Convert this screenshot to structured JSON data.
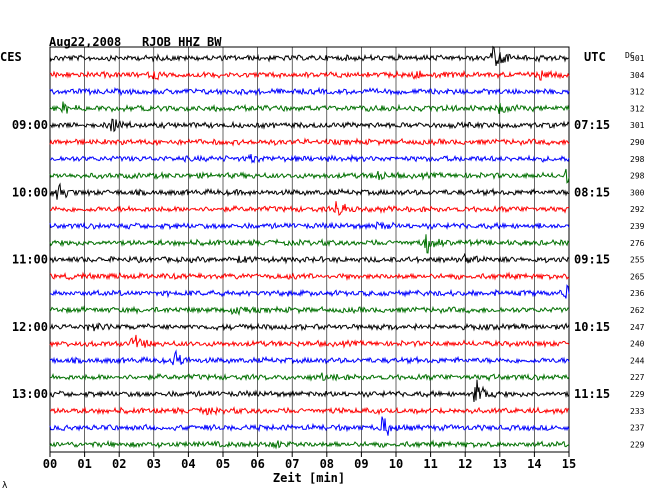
{
  "header": {
    "date": "Aug22,2008",
    "station": "RJOB HHZ BW",
    "left_zone": "CES",
    "right_zone": "UTC",
    "dc_label": "DC"
  },
  "footer": {
    "xlabel": "Zeit [min]",
    "corner_mark": "λ"
  },
  "colors": {
    "trace_cycle": [
      "#000000",
      "#ff0000",
      "#0000ff",
      "#007000"
    ],
    "grid": "#000000"
  },
  "chart_data": {
    "type": "line",
    "title": "Aug22,2008  RJOB HHZ BW",
    "xlabel": "Zeit [min]",
    "x_ticks": [
      "00",
      "01",
      "02",
      "03",
      "04",
      "05",
      "06",
      "07",
      "08",
      "09",
      "10",
      "11",
      "12",
      "13",
      "14",
      "15"
    ],
    "xlim": [
      0,
      15
    ],
    "left_time_labels": [
      {
        "row": 4,
        "label": "09:00"
      },
      {
        "row": 8,
        "label": "10:00"
      },
      {
        "row": 12,
        "label": "11:00"
      },
      {
        "row": 16,
        "label": "12:00"
      },
      {
        "row": 20,
        "label": "13:00"
      }
    ],
    "right_time_labels": [
      {
        "row": 4,
        "label": "07:15"
      },
      {
        "row": 8,
        "label": "08:15"
      },
      {
        "row": 12,
        "label": "09:15"
      },
      {
        "row": 16,
        "label": "10:15"
      },
      {
        "row": 20,
        "label": "11:15"
      }
    ],
    "dc_offsets": [
      "301",
      "304",
      "312",
      "312",
      "301",
      "290",
      "298",
      "298",
      "300",
      "292",
      "239",
      "276",
      "255",
      "265",
      "236",
      "262",
      "247",
      "240",
      "244",
      "227",
      "229",
      "233",
      "237",
      "229"
    ],
    "events": [
      {
        "row": 0,
        "minute": 12.8,
        "amp": 1.3
      },
      {
        "row": 0,
        "minute": 14.1,
        "amp": 0.3
      },
      {
        "row": 1,
        "minute": 3.0,
        "amp": 0.25
      },
      {
        "row": 1,
        "minute": 10.5,
        "amp": 0.25
      },
      {
        "row": 1,
        "minute": 14.1,
        "amp": 0.35
      },
      {
        "row": 3,
        "minute": 0.4,
        "amp": 0.55
      },
      {
        "row": 3,
        "minute": 13.0,
        "amp": 0.4
      },
      {
        "row": 4,
        "minute": 1.8,
        "amp": 0.6
      },
      {
        "row": 6,
        "minute": 5.8,
        "amp": 0.3
      },
      {
        "row": 7,
        "minute": 14.9,
        "amp": 0.55
      },
      {
        "row": 7,
        "minute": 9.5,
        "amp": 0.3
      },
      {
        "row": 8,
        "minute": 0.2,
        "amp": 0.7
      },
      {
        "row": 9,
        "minute": 8.3,
        "amp": 1.0
      },
      {
        "row": 10,
        "minute": 9.5,
        "amp": 0.3
      },
      {
        "row": 11,
        "minute": 10.9,
        "amp": 1.0
      },
      {
        "row": 12,
        "minute": 5.5,
        "amp": 0.35
      },
      {
        "row": 12,
        "minute": 12.0,
        "amp": 0.35
      },
      {
        "row": 14,
        "minute": 14.9,
        "amp": 0.7
      },
      {
        "row": 15,
        "minute": 5.3,
        "amp": 0.3
      },
      {
        "row": 16,
        "minute": 1.1,
        "amp": 0.4
      },
      {
        "row": 17,
        "minute": 2.4,
        "amp": 0.8
      },
      {
        "row": 18,
        "minute": 3.6,
        "amp": 0.6
      },
      {
        "row": 19,
        "minute": 7.8,
        "amp": 0.25
      },
      {
        "row": 20,
        "minute": 12.3,
        "amp": 1.2
      },
      {
        "row": 21,
        "minute": 4.5,
        "amp": 0.3
      },
      {
        "row": 22,
        "minute": 9.6,
        "amp": 1.4
      },
      {
        "row": 23,
        "minute": 6.5,
        "amp": 0.25
      }
    ]
  }
}
